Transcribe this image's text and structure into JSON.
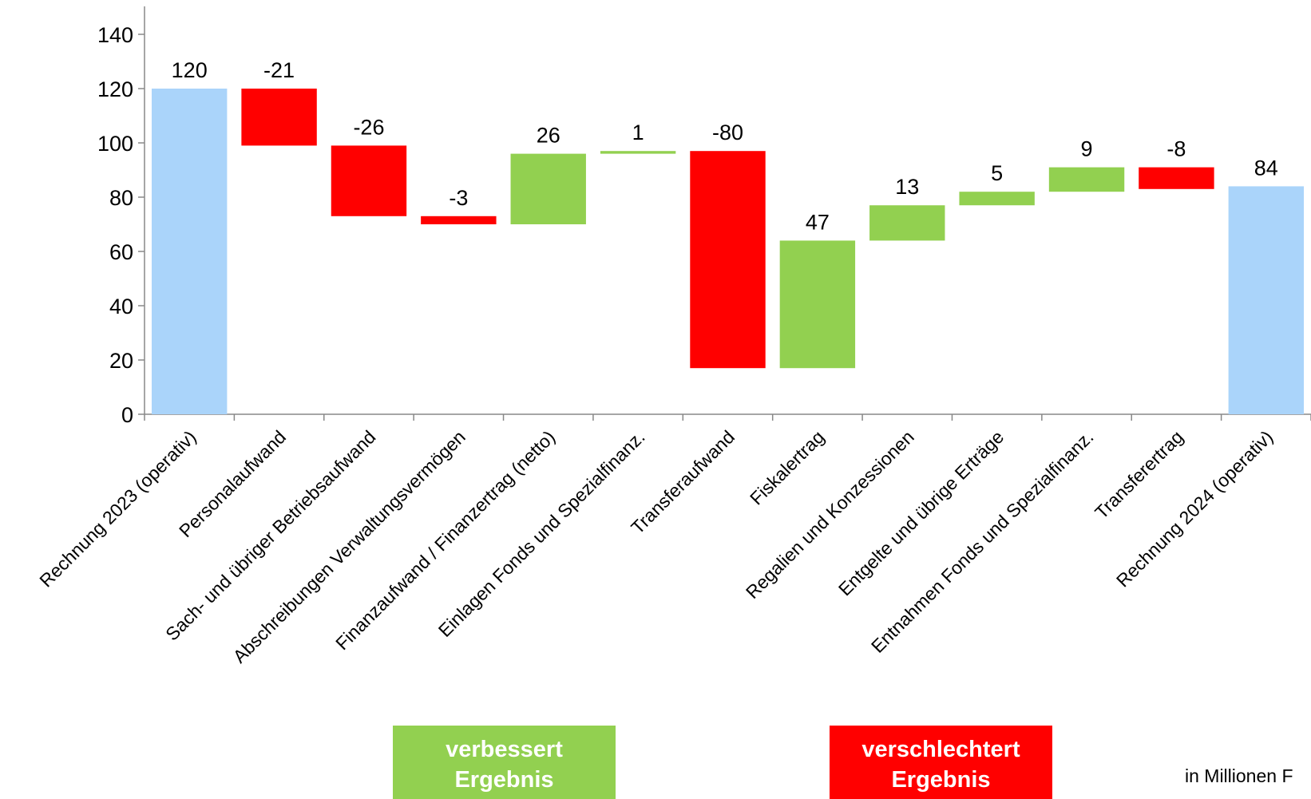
{
  "chart_data": {
    "type": "waterfall",
    "categories": [
      "Rechnung 2023 (operativ)",
      "Personalaufwand",
      "Sach- und übriger Betriebsaufwand",
      "Abschreibungen Verwaltungsvermögen",
      "Finanzaufwand / Finanzertrag (netto)",
      "Einlagen Fonds und Spezialfinanz.",
      "Transferaufwand",
      "Fiskalertrag",
      "Regalien und Konzessionen",
      "Entgelte und übrige Erträge",
      "Entnahmen Fonds und Spezialfinanz.",
      "Transferertrag",
      "Rechnung 2024 (operativ)"
    ],
    "values": [
      120,
      -21,
      -26,
      -3,
      26,
      1,
      -80,
      47,
      13,
      5,
      9,
      -8,
      84
    ],
    "total_color": "#aad4fa",
    "increase_color": "#92d050",
    "decrease_color": "#ff0000",
    "ylim": [
      0,
      140
    ],
    "yticks": [
      0,
      20,
      40,
      60,
      80,
      100,
      120,
      140
    ],
    "legend": [
      {
        "lines": [
          "verbessert",
          "Ergebnis"
        ],
        "color": "#92d050"
      },
      {
        "lines": [
          "verschlechtert",
          "Ergebnis"
        ],
        "color": "#ff0000"
      }
    ],
    "note": "in Millionen F"
  }
}
